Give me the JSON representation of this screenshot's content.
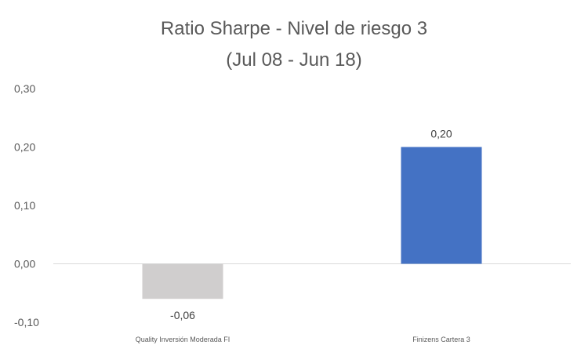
{
  "chart_data": {
    "type": "bar",
    "title": "Ratio Sharpe - Nivel de riesgo 3",
    "subtitle": "(Jul 08 - Jun 18)",
    "categories": [
      "Quality Inversión Moderada FI",
      "Finizens Cartera 3"
    ],
    "values": [
      -0.06,
      0.2
    ],
    "data_labels": [
      "-0,06",
      "0,20"
    ],
    "colors": [
      "#d0cece",
      "#4472c4"
    ],
    "ylim": [
      -0.1,
      0.3
    ],
    "yticks": [
      0.3,
      0.2,
      0.1,
      0.0,
      -0.1
    ],
    "ytick_labels": [
      "0,30",
      "0,20",
      "0,10",
      "0,00",
      "-0,10"
    ],
    "grid": false,
    "legend": "none",
    "xlabel": "",
    "ylabel": ""
  }
}
